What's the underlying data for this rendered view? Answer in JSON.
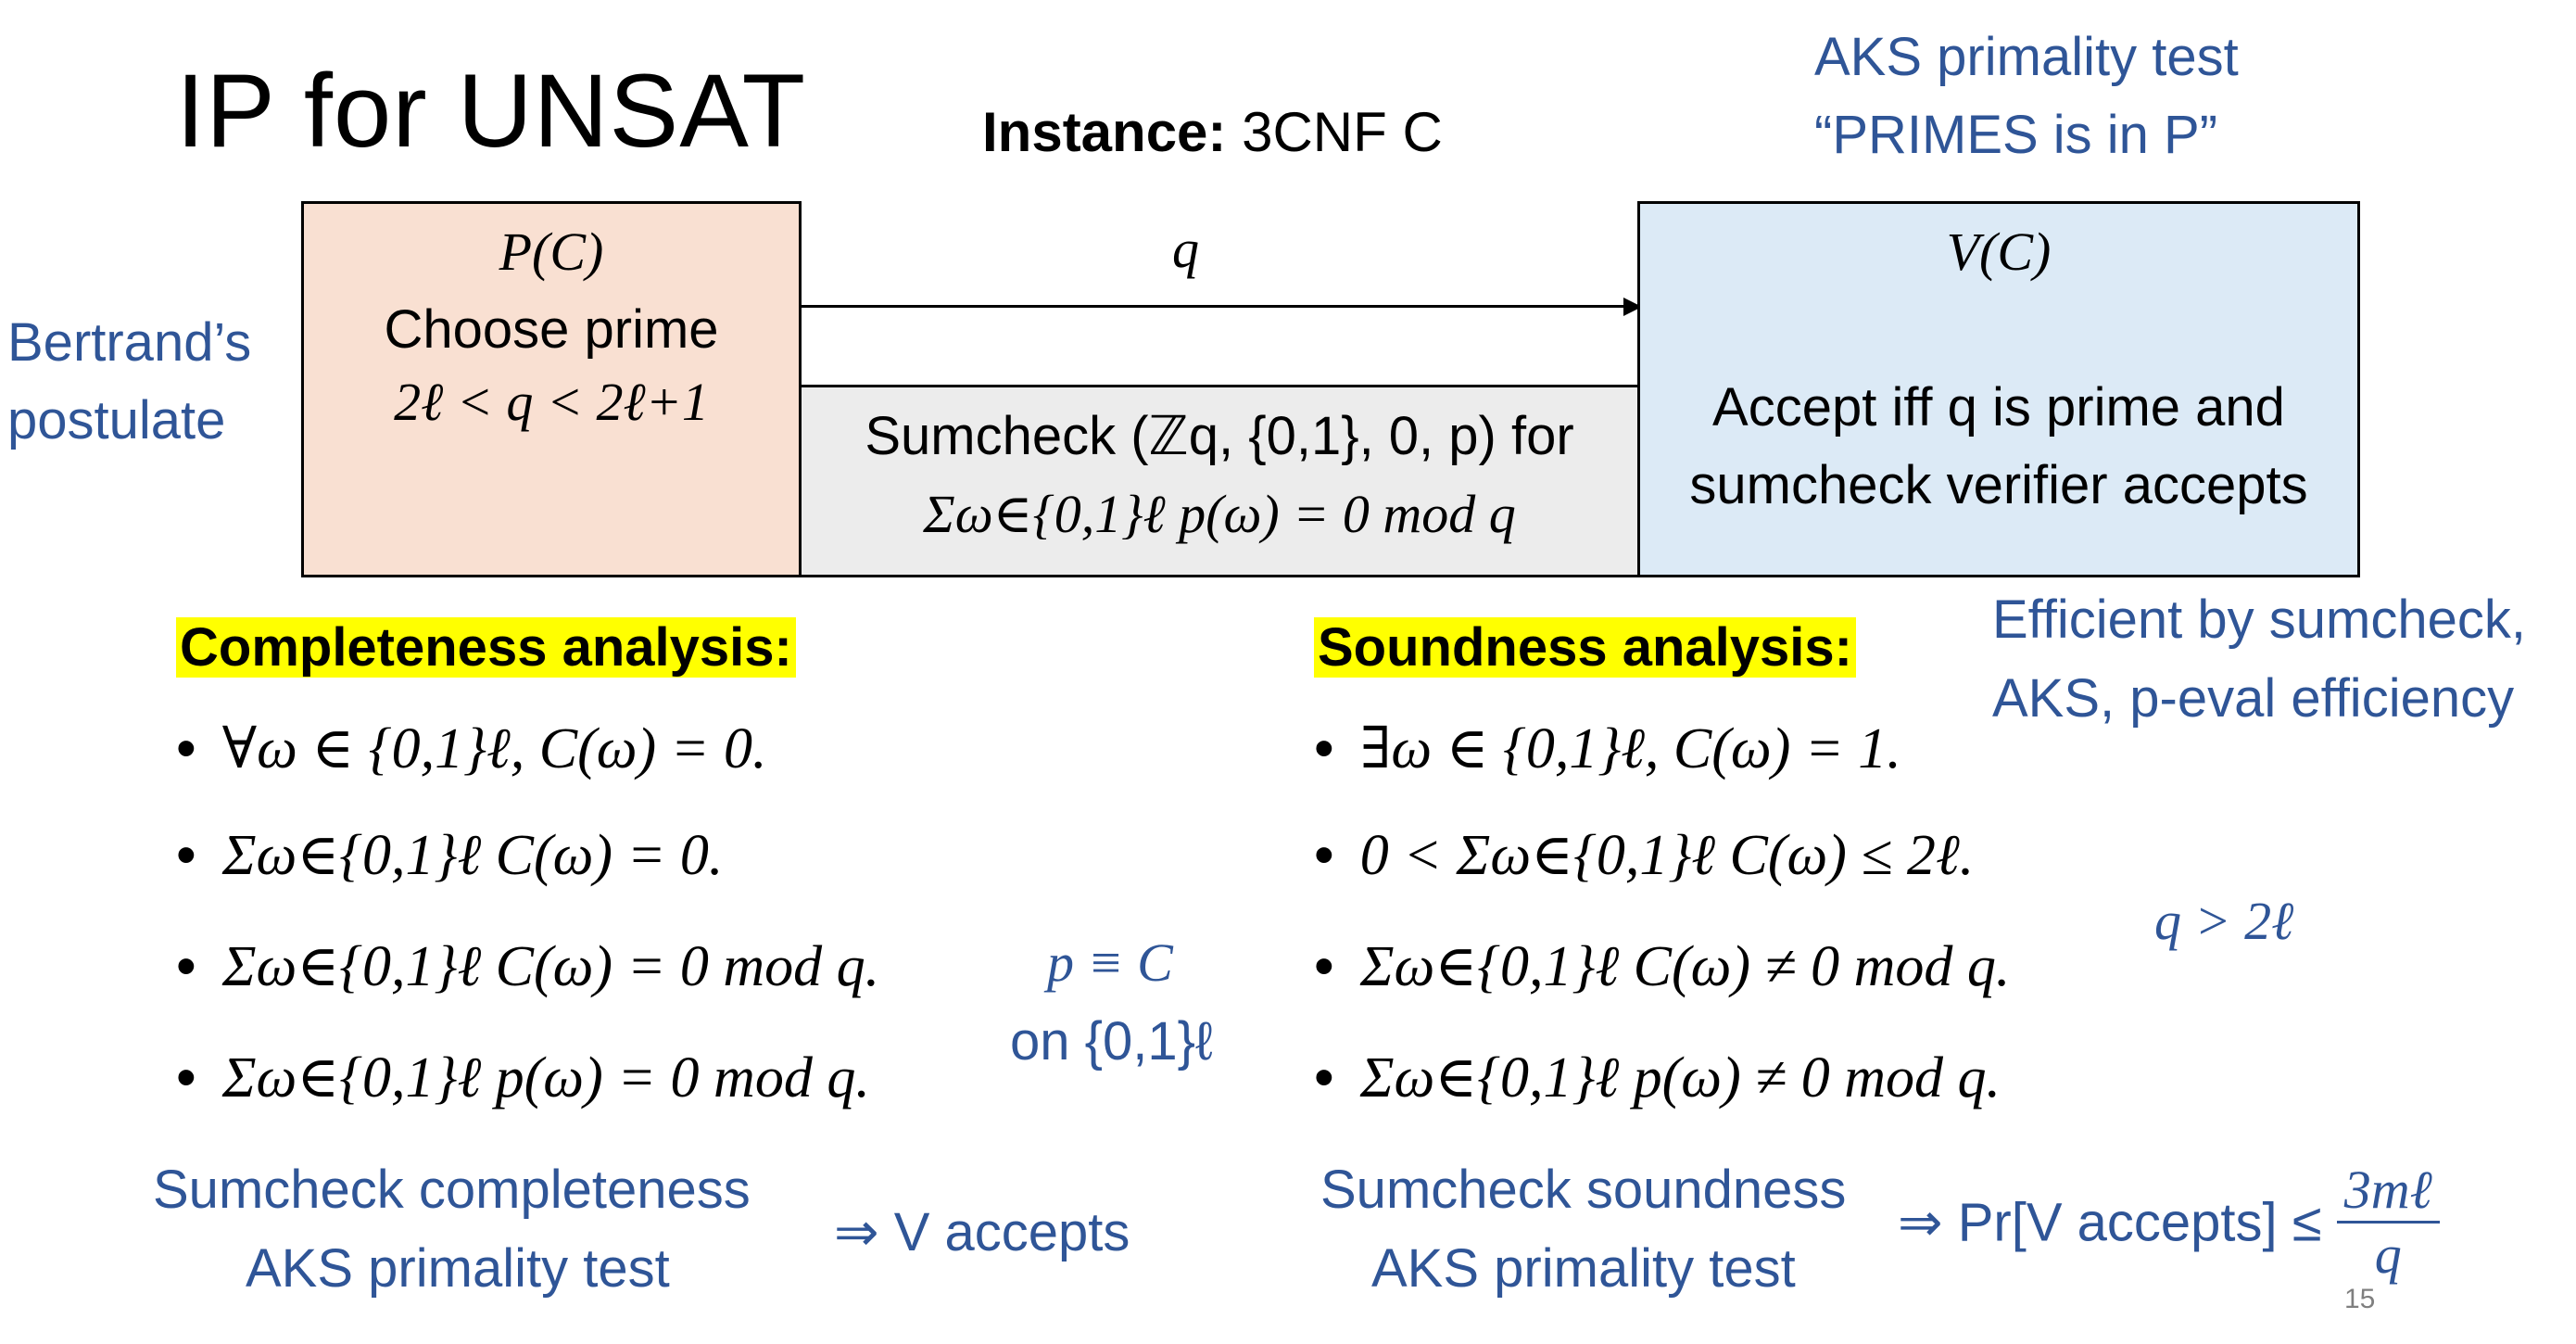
{
  "title": "IP for UNSAT",
  "instance": {
    "label": "Instance:",
    "text": "3CNF C"
  },
  "top_note": {
    "line1": "AKS primality test",
    "line2": "“PRIMES is in P”"
  },
  "prover": {
    "name": "P(C)",
    "line1": "Choose prime",
    "line2": "2ℓ < q < 2ℓ+1"
  },
  "verifier": {
    "name": "V(C)",
    "line1": "Accept iff q is prime and",
    "line2": "sumcheck verifier accepts"
  },
  "message": {
    "q": "q"
  },
  "sumcheck": {
    "line1": "Sumcheck (ℤq, {0,1}, 0, p) for",
    "line2": "Σω∈{0,1}ℓ p(ω) = 0 mod q"
  },
  "bertrand": {
    "line1": "Bertrand’s",
    "line2": "postulate"
  },
  "completeness": {
    "heading": "Completeness analysis:",
    "items": [
      "∀ω ∈ {0,1}ℓ, C(ω) = 0.",
      "Σω∈{0,1}ℓ C(ω) = 0.",
      "Σω∈{0,1}ℓ C(ω) = 0 mod q.",
      "Σω∈{0,1}ℓ p(ω) = 0 mod q."
    ],
    "footer_line1": "Sumcheck completeness",
    "footer_line2": "AKS primality test",
    "result": "⇒ V accepts"
  },
  "equiv_note": {
    "line1": "p ≡ C",
    "line2": "on {0,1}ℓ"
  },
  "soundness": {
    "heading": "Soundness analysis:",
    "items": [
      "∃ω ∈ {0,1}ℓ, C(ω) = 1.",
      "0 < Σω∈{0,1}ℓ C(ω) ≤ 2ℓ.",
      "Σω∈{0,1}ℓ C(ω) ≠ 0 mod q.",
      "Σω∈{0,1}ℓ p(ω) ≠ 0 mod q."
    ],
    "footer_line1": "Sumcheck soundness",
    "footer_line2": "AKS primality test",
    "result_prefix": "⇒ Pr[V accepts] ≤",
    "frac_num": "3mℓ",
    "frac_den": "q"
  },
  "q_note": "q > 2ℓ",
  "efficiency": {
    "line1": "Efficient by sumcheck,",
    "line2": "AKS, p-eval efficiency"
  },
  "page_number": "15",
  "colors": {
    "blue": "#2f5597",
    "highlight": "#ffff00",
    "prover_bg": "#f9e0d2",
    "verifier_bg": "#dceaf6",
    "sumcheck_bg": "#ececec"
  }
}
